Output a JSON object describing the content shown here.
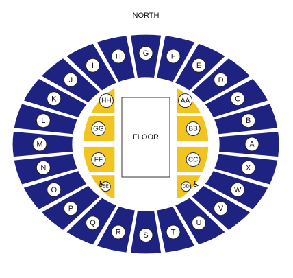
{
  "title": "NORTH",
  "floor_label": "FLOOR",
  "colors": {
    "upper_section": "#1e2381",
    "lower_section": "#f2c420",
    "background": "#ffffff"
  },
  "accessibility_icon": "wheelchair-icon",
  "upper_sections": [
    "G",
    "F",
    "E",
    "D",
    "C",
    "B",
    "A",
    "X",
    "W",
    "V",
    "U",
    "T",
    "S",
    "R",
    "Q",
    "P",
    "O",
    "N",
    "M",
    "L",
    "K",
    "J",
    "I",
    "H"
  ],
  "lower_sections": {
    "east": [
      "AA",
      "BB",
      "CC",
      "DD"
    ],
    "west": [
      "HH",
      "GG",
      "FF",
      "EE"
    ]
  }
}
